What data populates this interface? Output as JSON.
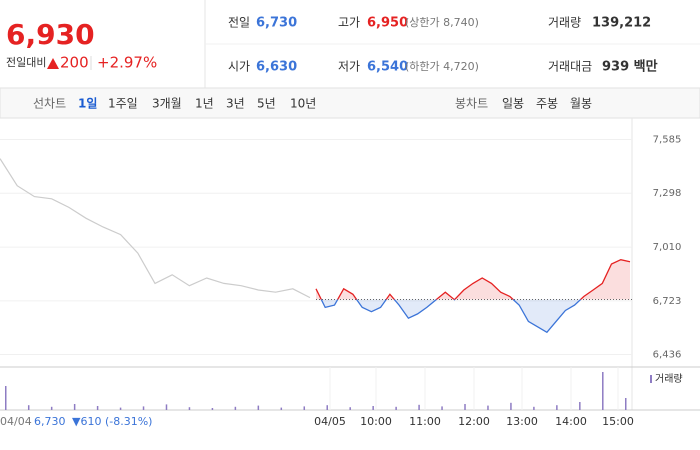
{
  "header": {
    "price": "6,930",
    "change_label": "전일대비",
    "change": "200",
    "rate": "+2.97%",
    "stats": [
      [
        {
          "label": "전일",
          "value": "6,730"
        },
        {
          "label": "고가",
          "value": "6,950",
          "note": "(상한가 8,740)"
        },
        {
          "label": "거래량",
          "value": "139,212"
        }
      ],
      [
        {
          "label": "시가",
          "value": "6,630"
        },
        {
          "label": "저가",
          "value": "6,540",
          "note": "(하한가 4,720)"
        },
        {
          "label": "거래대금",
          "value": "939 백만"
        }
      ]
    ]
  },
  "tabs": {
    "line_label": "선차트",
    "line": [
      "1일",
      "1주일",
      "3개월",
      "1년",
      "3년",
      "5년",
      "10년"
    ],
    "candle_label": "봉차트",
    "candle": [
      "일봉",
      "주봉",
      "월봉"
    ]
  },
  "chart_data": {
    "type": "line",
    "ylim": [
      6380,
      7700
    ],
    "yticks": [
      {
        "value": 6436,
        "label": "6,436"
      },
      {
        "value": 6723,
        "label": "6,723"
      },
      {
        "value": 7010,
        "label": "7,010"
      },
      {
        "value": 7298,
        "label": "7,298"
      },
      {
        "value": 7585,
        "label": "7,585"
      }
    ],
    "baseline": 6730,
    "x_labels": [
      "04/05",
      "10:00",
      "11:00",
      "12:00",
      "13:00",
      "14:00",
      "15:00"
    ],
    "prev_day": {
      "date": "04/04",
      "close": "6,730",
      "change": "▼610 (-8.31%)"
    },
    "series": [
      {
        "color": "#cccccc",
        "values": [
          7483,
          7338,
          7280,
          7268,
          7222,
          7164,
          7117,
          7077,
          6978,
          6816,
          6862,
          6804,
          6845,
          6816,
          6804,
          6781,
          6769,
          6787,
          6740
        ]
      },
      {
        "color_up": "#e52222",
        "color_down": "#3b74d8",
        "values": [
          6787,
          6688,
          6700,
          6787,
          6758,
          6688,
          6665,
          6688,
          6758,
          6700,
          6630,
          6653,
          6688,
          6729,
          6769,
          6729,
          6781,
          6816,
          6845,
          6816,
          6769,
          6746,
          6700,
          6613,
          6584,
          6555,
          6613,
          6671,
          6700,
          6746,
          6781,
          6816,
          6920,
          6943,
          6932
        ]
      }
    ],
    "volume_label": "거래량",
    "volume_color": "#8e7cc3",
    "volume": [
      60,
      12,
      8,
      15,
      10,
      6,
      9,
      14,
      7,
      5,
      8,
      11,
      6,
      9,
      12,
      7,
      10,
      8,
      13,
      9,
      15,
      11,
      18,
      8,
      12,
      20,
      95,
      30
    ]
  }
}
